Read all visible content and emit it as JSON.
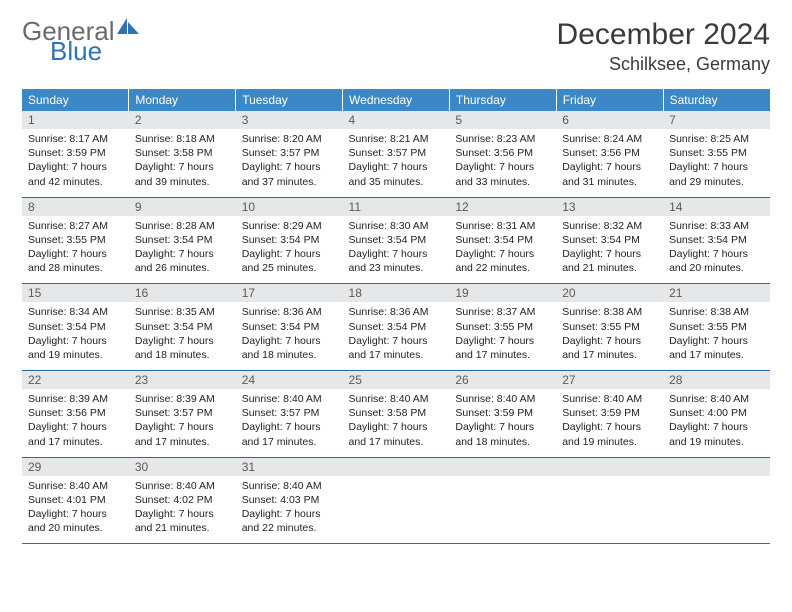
{
  "logo": {
    "text1": "General",
    "text2": "Blue",
    "icon_color": "#2f72b6"
  },
  "header": {
    "title": "December 2024",
    "location": "Schilksee, Germany"
  },
  "colors": {
    "header_bg": "#3c88c6",
    "header_text": "#ffffff",
    "daynum_bg": "#e6e7e8",
    "border": "#2c6aa3"
  },
  "weekdays": [
    "Sunday",
    "Monday",
    "Tuesday",
    "Wednesday",
    "Thursday",
    "Friday",
    "Saturday"
  ],
  "weeks": [
    [
      {
        "day": "1",
        "sunrise": "Sunrise: 8:17 AM",
        "sunset": "Sunset: 3:59 PM",
        "dl1": "Daylight: 7 hours",
        "dl2": "and 42 minutes."
      },
      {
        "day": "2",
        "sunrise": "Sunrise: 8:18 AM",
        "sunset": "Sunset: 3:58 PM",
        "dl1": "Daylight: 7 hours",
        "dl2": "and 39 minutes."
      },
      {
        "day": "3",
        "sunrise": "Sunrise: 8:20 AM",
        "sunset": "Sunset: 3:57 PM",
        "dl1": "Daylight: 7 hours",
        "dl2": "and 37 minutes."
      },
      {
        "day": "4",
        "sunrise": "Sunrise: 8:21 AM",
        "sunset": "Sunset: 3:57 PM",
        "dl1": "Daylight: 7 hours",
        "dl2": "and 35 minutes."
      },
      {
        "day": "5",
        "sunrise": "Sunrise: 8:23 AM",
        "sunset": "Sunset: 3:56 PM",
        "dl1": "Daylight: 7 hours",
        "dl2": "and 33 minutes."
      },
      {
        "day": "6",
        "sunrise": "Sunrise: 8:24 AM",
        "sunset": "Sunset: 3:56 PM",
        "dl1": "Daylight: 7 hours",
        "dl2": "and 31 minutes."
      },
      {
        "day": "7",
        "sunrise": "Sunrise: 8:25 AM",
        "sunset": "Sunset: 3:55 PM",
        "dl1": "Daylight: 7 hours",
        "dl2": "and 29 minutes."
      }
    ],
    [
      {
        "day": "8",
        "sunrise": "Sunrise: 8:27 AM",
        "sunset": "Sunset: 3:55 PM",
        "dl1": "Daylight: 7 hours",
        "dl2": "and 28 minutes."
      },
      {
        "day": "9",
        "sunrise": "Sunrise: 8:28 AM",
        "sunset": "Sunset: 3:54 PM",
        "dl1": "Daylight: 7 hours",
        "dl2": "and 26 minutes."
      },
      {
        "day": "10",
        "sunrise": "Sunrise: 8:29 AM",
        "sunset": "Sunset: 3:54 PM",
        "dl1": "Daylight: 7 hours",
        "dl2": "and 25 minutes."
      },
      {
        "day": "11",
        "sunrise": "Sunrise: 8:30 AM",
        "sunset": "Sunset: 3:54 PM",
        "dl1": "Daylight: 7 hours",
        "dl2": "and 23 minutes."
      },
      {
        "day": "12",
        "sunrise": "Sunrise: 8:31 AM",
        "sunset": "Sunset: 3:54 PM",
        "dl1": "Daylight: 7 hours",
        "dl2": "and 22 minutes."
      },
      {
        "day": "13",
        "sunrise": "Sunrise: 8:32 AM",
        "sunset": "Sunset: 3:54 PM",
        "dl1": "Daylight: 7 hours",
        "dl2": "and 21 minutes."
      },
      {
        "day": "14",
        "sunrise": "Sunrise: 8:33 AM",
        "sunset": "Sunset: 3:54 PM",
        "dl1": "Daylight: 7 hours",
        "dl2": "and 20 minutes."
      }
    ],
    [
      {
        "day": "15",
        "sunrise": "Sunrise: 8:34 AM",
        "sunset": "Sunset: 3:54 PM",
        "dl1": "Daylight: 7 hours",
        "dl2": "and 19 minutes."
      },
      {
        "day": "16",
        "sunrise": "Sunrise: 8:35 AM",
        "sunset": "Sunset: 3:54 PM",
        "dl1": "Daylight: 7 hours",
        "dl2": "and 18 minutes."
      },
      {
        "day": "17",
        "sunrise": "Sunrise: 8:36 AM",
        "sunset": "Sunset: 3:54 PM",
        "dl1": "Daylight: 7 hours",
        "dl2": "and 18 minutes."
      },
      {
        "day": "18",
        "sunrise": "Sunrise: 8:36 AM",
        "sunset": "Sunset: 3:54 PM",
        "dl1": "Daylight: 7 hours",
        "dl2": "and 17 minutes."
      },
      {
        "day": "19",
        "sunrise": "Sunrise: 8:37 AM",
        "sunset": "Sunset: 3:55 PM",
        "dl1": "Daylight: 7 hours",
        "dl2": "and 17 minutes."
      },
      {
        "day": "20",
        "sunrise": "Sunrise: 8:38 AM",
        "sunset": "Sunset: 3:55 PM",
        "dl1": "Daylight: 7 hours",
        "dl2": "and 17 minutes."
      },
      {
        "day": "21",
        "sunrise": "Sunrise: 8:38 AM",
        "sunset": "Sunset: 3:55 PM",
        "dl1": "Daylight: 7 hours",
        "dl2": "and 17 minutes."
      }
    ],
    [
      {
        "day": "22",
        "sunrise": "Sunrise: 8:39 AM",
        "sunset": "Sunset: 3:56 PM",
        "dl1": "Daylight: 7 hours",
        "dl2": "and 17 minutes."
      },
      {
        "day": "23",
        "sunrise": "Sunrise: 8:39 AM",
        "sunset": "Sunset: 3:57 PM",
        "dl1": "Daylight: 7 hours",
        "dl2": "and 17 minutes."
      },
      {
        "day": "24",
        "sunrise": "Sunrise: 8:40 AM",
        "sunset": "Sunset: 3:57 PM",
        "dl1": "Daylight: 7 hours",
        "dl2": "and 17 minutes."
      },
      {
        "day": "25",
        "sunrise": "Sunrise: 8:40 AM",
        "sunset": "Sunset: 3:58 PM",
        "dl1": "Daylight: 7 hours",
        "dl2": "and 17 minutes."
      },
      {
        "day": "26",
        "sunrise": "Sunrise: 8:40 AM",
        "sunset": "Sunset: 3:59 PM",
        "dl1": "Daylight: 7 hours",
        "dl2": "and 18 minutes."
      },
      {
        "day": "27",
        "sunrise": "Sunrise: 8:40 AM",
        "sunset": "Sunset: 3:59 PM",
        "dl1": "Daylight: 7 hours",
        "dl2": "and 19 minutes."
      },
      {
        "day": "28",
        "sunrise": "Sunrise: 8:40 AM",
        "sunset": "Sunset: 4:00 PM",
        "dl1": "Daylight: 7 hours",
        "dl2": "and 19 minutes."
      }
    ],
    [
      {
        "day": "29",
        "sunrise": "Sunrise: 8:40 AM",
        "sunset": "Sunset: 4:01 PM",
        "dl1": "Daylight: 7 hours",
        "dl2": "and 20 minutes."
      },
      {
        "day": "30",
        "sunrise": "Sunrise: 8:40 AM",
        "sunset": "Sunset: 4:02 PM",
        "dl1": "Daylight: 7 hours",
        "dl2": "and 21 minutes."
      },
      {
        "day": "31",
        "sunrise": "Sunrise: 8:40 AM",
        "sunset": "Sunset: 4:03 PM",
        "dl1": "Daylight: 7 hours",
        "dl2": "and 22 minutes."
      },
      {
        "empty": true
      },
      {
        "empty": true
      },
      {
        "empty": true
      },
      {
        "empty": true
      }
    ]
  ]
}
